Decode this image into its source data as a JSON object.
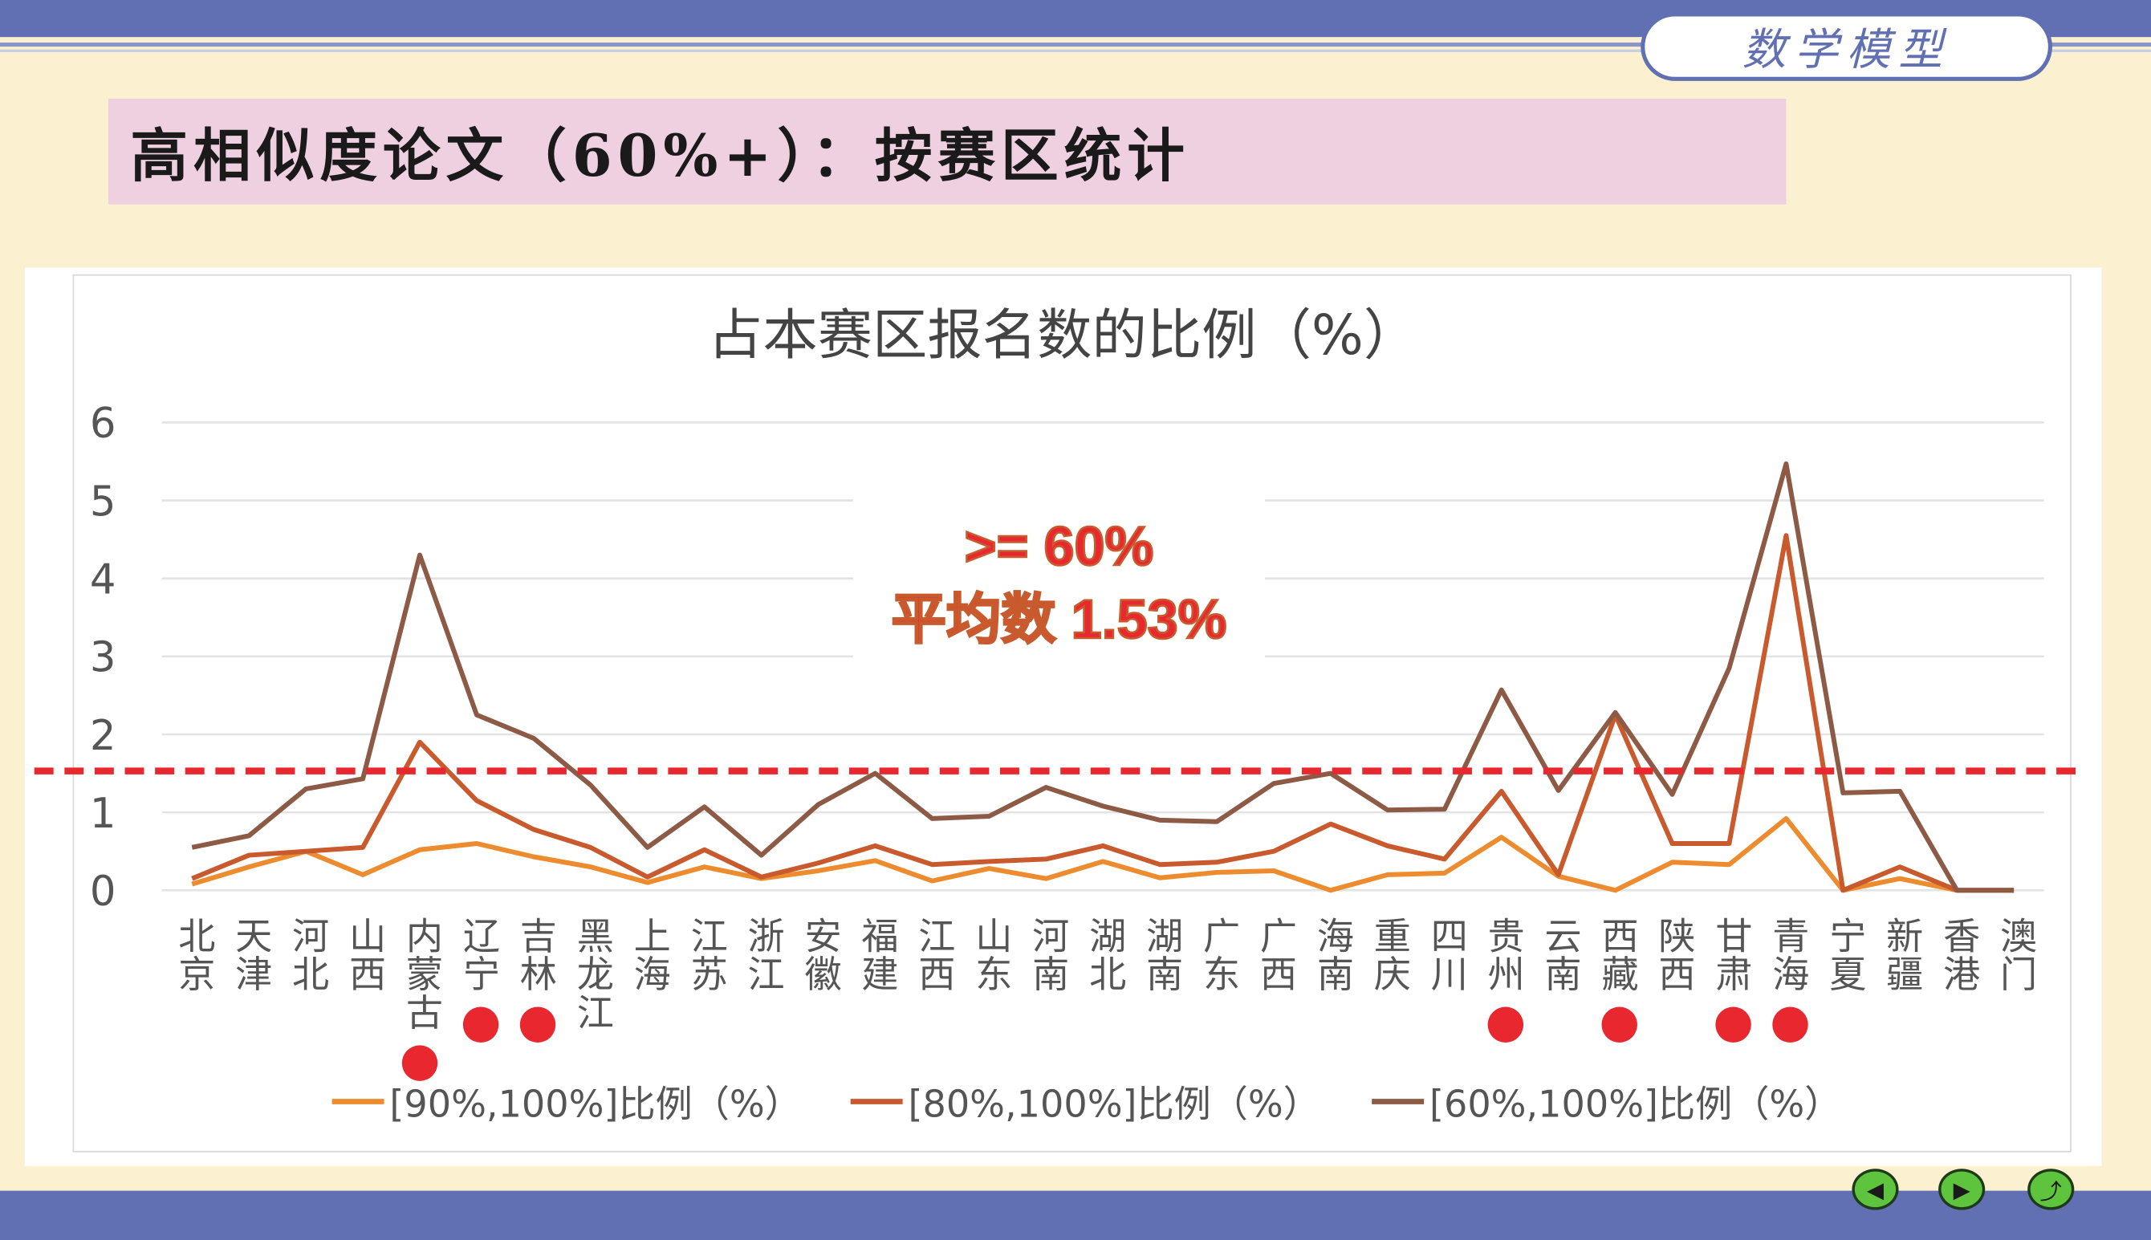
{
  "header": {
    "badge": "数学模型",
    "title": "高相似度论文（60%+）：按赛区统计"
  },
  "annotation": {
    "line1": ">= 60%",
    "line2": "平均数 1.53%"
  },
  "colors": {
    "s90": "#ed8c2e",
    "s80": "#c85a2d",
    "s60": "#8d5a45",
    "avg_line": "#e8282e",
    "dot": "#e8282e",
    "topbar": "#6170b2",
    "background": "#fbf0cf"
  },
  "nav": {
    "prev_icon": "arrow-left-icon",
    "next_icon": "arrow-right-icon",
    "return_icon": "return-icon"
  },
  "chart_data": {
    "type": "line",
    "title": "占本赛区报名数的比例（%）",
    "ylim": [
      0,
      6
    ],
    "yticks": [
      "0",
      "1",
      "2",
      "3",
      "4",
      "5",
      "6"
    ],
    "grid": true,
    "legend": "bottom",
    "categories": [
      "北京",
      "天津",
      "河北",
      "山西",
      "内蒙古",
      "辽宁",
      "吉林",
      "黑龙江",
      "上海",
      "江苏",
      "浙江",
      "安徽",
      "福建",
      "江西",
      "山东",
      "河南",
      "湖北",
      "湖南",
      "广东",
      "广西",
      "海南",
      "重庆",
      "四川",
      "贵州",
      "云南",
      "西藏",
      "陕西",
      "甘肃",
      "青海",
      "宁夏",
      "新疆",
      "香港",
      "澳门"
    ],
    "highlighted": [
      "内蒙古",
      "辽宁",
      "吉林",
      "贵州",
      "西藏",
      "甘肃",
      "青海"
    ],
    "average_line": 1.53,
    "series": [
      {
        "name": "[90%,100%]比例（%）",
        "values": [
          0.08,
          0.3,
          0.5,
          0.2,
          0.52,
          0.6,
          0.43,
          0.3,
          0.1,
          0.3,
          0.15,
          0.25,
          0.38,
          0.12,
          0.28,
          0.15,
          0.37,
          0.16,
          0.23,
          0.25,
          0,
          0.2,
          0.22,
          0.68,
          0.18,
          0,
          0.36,
          0.33,
          0.92,
          0,
          0.15,
          0,
          0
        ]
      },
      {
        "name": "[80%,100%]比例（%）",
        "values": [
          0.15,
          0.45,
          0.5,
          0.55,
          1.9,
          1.15,
          0.78,
          0.55,
          0.17,
          0.52,
          0.17,
          0.35,
          0.57,
          0.33,
          0.37,
          0.4,
          0.57,
          0.33,
          0.36,
          0.5,
          0.85,
          0.57,
          0.4,
          1.27,
          0.2,
          2.25,
          0.6,
          0.6,
          4.55,
          0,
          0.3,
          0,
          0
        ]
      },
      {
        "name": "[60%,100%]比例（%）",
        "values": [
          0.55,
          0.7,
          1.3,
          1.43,
          4.3,
          2.25,
          1.95,
          1.35,
          0.55,
          1.07,
          0.45,
          1.1,
          1.5,
          0.92,
          0.95,
          1.32,
          1.08,
          0.9,
          0.88,
          1.37,
          1.5,
          1.03,
          1.04,
          2.57,
          1.28,
          2.28,
          1.23,
          2.85,
          5.47,
          1.25,
          1.27,
          0,
          0
        ]
      }
    ]
  }
}
